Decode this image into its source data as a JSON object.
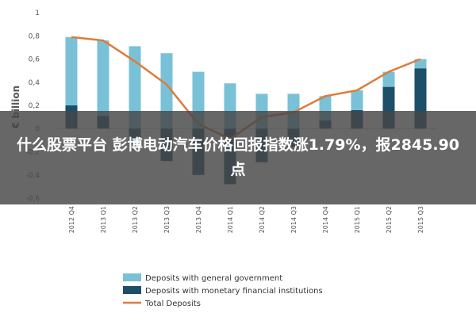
{
  "headline": "什么股票平台 彭博电动汽车价格回报指数涨1.79%，报2845.90点",
  "colors": {
    "general_government": "#79c1d6",
    "monetary_financial": "#1c4f68",
    "total": "#e07b39"
  },
  "chart_data": {
    "type": "bar",
    "stacked": true,
    "ylabel": "€ billion",
    "ylim": [
      -0.6,
      1.0
    ],
    "yticks": [
      -0.6,
      -0.4,
      -0.2,
      0,
      0.2,
      0.4,
      0.6,
      0.8,
      1
    ],
    "ytick_labels": [
      "-0,6",
      "-0,4",
      "-0,2",
      "0",
      "0,2",
      "0,4",
      "0,6",
      "0,8",
      "1"
    ],
    "categories": [
      "2012 Q4",
      "2013 Q1",
      "2013 Q2",
      "2013 Q3",
      "2013 Q4",
      "2014 Q1",
      "2014 Q2",
      "2014 Q3",
      "2014 Q4",
      "2015 Q1",
      "2015 Q2",
      "2015 Q3"
    ],
    "series": [
      {
        "name": "Deposits with general government",
        "type": "bar",
        "color_key": "general_government",
        "values": [
          0.59,
          0.65,
          0.71,
          0.65,
          0.49,
          0.39,
          0.3,
          0.3,
          0.21,
          0.17,
          0.13,
          0.08
        ]
      },
      {
        "name": "Deposits with monetary financial institutions",
        "type": "bar",
        "color_key": "monetary_financial",
        "values": [
          0.2,
          0.11,
          -0.13,
          -0.28,
          -0.4,
          -0.48,
          -0.29,
          -0.16,
          0.07,
          0.16,
          0.36,
          0.52
        ]
      },
      {
        "name": "Total Deposits",
        "type": "line",
        "color_key": "total",
        "values": [
          0.79,
          0.76,
          0.58,
          0.38,
          0.04,
          -0.09,
          0.1,
          0.14,
          0.28,
          0.33,
          0.49,
          0.6
        ]
      }
    ],
    "legend_position": "bottom"
  }
}
